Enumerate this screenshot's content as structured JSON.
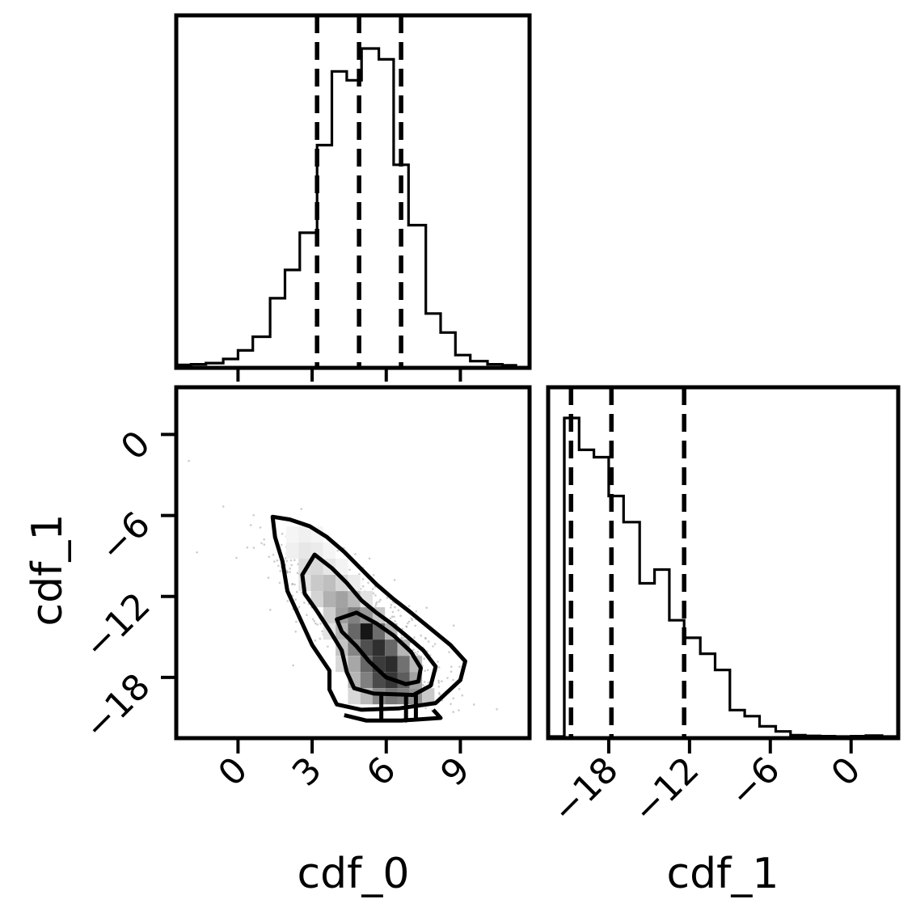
{
  "chart_data": [
    {
      "panel": "hist_cdf_0",
      "type": "bar",
      "histtype": "step",
      "xlim": [
        -2.5,
        11.8
      ],
      "bin_edges": [
        -2.5,
        -1.9,
        -1.3,
        -0.6,
        0.0,
        0.6,
        1.3,
        1.9,
        2.5,
        3.2,
        3.8,
        4.4,
        5.0,
        5.7,
        6.3,
        6.9,
        7.6,
        8.2,
        8.8,
        9.4,
        10.1,
        10.7,
        11.3
      ],
      "counts": [
        0.004,
        0.006,
        0.01,
        0.023,
        0.05,
        0.093,
        0.214,
        0.303,
        0.42,
        0.696,
        0.928,
        0.9,
        1.0,
        0.966,
        0.634,
        0.444,
        0.166,
        0.106,
        0.035,
        0.016,
        0.006,
        0.003
      ],
      "quantile_lines": [
        3.2,
        4.9,
        6.6
      ],
      "x_ticks": [
        "0",
        "3",
        "6",
        "9"
      ],
      "x_tick_values": [
        0,
        3,
        6,
        9
      ],
      "show_tick_labels": false
    },
    {
      "panel": "scatter_cdf_0_vs_cdf_1",
      "type": "scatter",
      "subtype": "2d-density-with-contours",
      "xlim": [
        -2.5,
        11.8
      ],
      "ylim": [
        -22.5,
        3.5
      ],
      "xlabel": "cdf_0",
      "ylabel": "cdf_1",
      "x_ticks": [
        "0",
        "3",
        "6",
        "9"
      ],
      "x_tick_values": [
        0,
        3,
        6,
        9
      ],
      "y_ticks": [
        "0",
        "−6",
        "−12",
        "−18"
      ],
      "y_tick_values": [
        0,
        -6,
        -12,
        -18
      ],
      "density_cells": [
        {
          "x": 2.2,
          "y": -7.4,
          "v": 0.04
        },
        {
          "x": 2.7,
          "y": -7.4,
          "v": 0.06
        },
        {
          "x": 3.2,
          "y": -7.4,
          "v": 0.04
        },
        {
          "x": 2.2,
          "y": -8.6,
          "v": 0.06
        },
        {
          "x": 2.7,
          "y": -8.6,
          "v": 0.1
        },
        {
          "x": 3.2,
          "y": -8.6,
          "v": 0.08
        },
        {
          "x": 3.7,
          "y": -8.6,
          "v": 0.04
        },
        {
          "x": 2.7,
          "y": -9.8,
          "v": 0.14
        },
        {
          "x": 3.2,
          "y": -9.8,
          "v": 0.16
        },
        {
          "x": 3.7,
          "y": -9.8,
          "v": 0.1
        },
        {
          "x": 4.2,
          "y": -9.8,
          "v": 0.05
        },
        {
          "x": 2.7,
          "y": -11.0,
          "v": 0.12
        },
        {
          "x": 3.2,
          "y": -11.0,
          "v": 0.22
        },
        {
          "x": 3.7,
          "y": -11.0,
          "v": 0.26
        },
        {
          "x": 4.2,
          "y": -11.0,
          "v": 0.16
        },
        {
          "x": 4.7,
          "y": -11.0,
          "v": 0.08
        },
        {
          "x": 3.2,
          "y": -12.2,
          "v": 0.18
        },
        {
          "x": 3.7,
          "y": -12.2,
          "v": 0.32
        },
        {
          "x": 4.2,
          "y": -12.2,
          "v": 0.38
        },
        {
          "x": 4.7,
          "y": -12.2,
          "v": 0.28
        },
        {
          "x": 5.2,
          "y": -12.2,
          "v": 0.12
        },
        {
          "x": 3.7,
          "y": -13.4,
          "v": 0.2
        },
        {
          "x": 4.2,
          "y": -13.4,
          "v": 0.4
        },
        {
          "x": 4.7,
          "y": -13.4,
          "v": 0.52
        },
        {
          "x": 5.2,
          "y": -13.4,
          "v": 0.42
        },
        {
          "x": 5.7,
          "y": -13.4,
          "v": 0.22
        },
        {
          "x": 3.7,
          "y": -14.6,
          "v": 0.12
        },
        {
          "x": 4.2,
          "y": -14.6,
          "v": 0.3
        },
        {
          "x": 4.7,
          "y": -14.6,
          "v": 0.62
        },
        {
          "x": 5.2,
          "y": -14.6,
          "v": 0.95
        },
        {
          "x": 5.7,
          "y": -14.6,
          "v": 0.6
        },
        {
          "x": 6.2,
          "y": -14.6,
          "v": 0.3
        },
        {
          "x": 4.2,
          "y": -15.8,
          "v": 0.24
        },
        {
          "x": 4.7,
          "y": -15.8,
          "v": 0.5
        },
        {
          "x": 5.2,
          "y": -15.8,
          "v": 0.72
        },
        {
          "x": 5.7,
          "y": -15.8,
          "v": 0.85
        },
        {
          "x": 6.2,
          "y": -15.8,
          "v": 0.62
        },
        {
          "x": 6.7,
          "y": -15.8,
          "v": 0.3
        },
        {
          "x": 4.2,
          "y": -17.0,
          "v": 0.16
        },
        {
          "x": 4.7,
          "y": -17.0,
          "v": 0.36
        },
        {
          "x": 5.2,
          "y": -17.0,
          "v": 0.62
        },
        {
          "x": 5.7,
          "y": -17.0,
          "v": 0.8
        },
        {
          "x": 6.2,
          "y": -17.0,
          "v": 0.86
        },
        {
          "x": 6.7,
          "y": -17.0,
          "v": 0.58
        },
        {
          "x": 7.2,
          "y": -17.0,
          "v": 0.28
        },
        {
          "x": 4.7,
          "y": -18.2,
          "v": 0.3
        },
        {
          "x": 5.2,
          "y": -18.2,
          "v": 0.52
        },
        {
          "x": 5.7,
          "y": -18.2,
          "v": 0.74
        },
        {
          "x": 6.2,
          "y": -18.2,
          "v": 0.82
        },
        {
          "x": 6.7,
          "y": -18.2,
          "v": 0.66
        },
        {
          "x": 7.2,
          "y": -18.2,
          "v": 0.38
        },
        {
          "x": 4.7,
          "y": -19.4,
          "v": 0.16
        },
        {
          "x": 5.2,
          "y": -19.4,
          "v": 0.28
        },
        {
          "x": 5.7,
          "y": -19.4,
          "v": 0.48
        },
        {
          "x": 6.2,
          "y": -19.4,
          "v": 0.56
        },
        {
          "x": 6.7,
          "y": -19.4,
          "v": 0.52
        },
        {
          "x": 7.2,
          "y": -19.4,
          "v": 0.44
        },
        {
          "x": 7.7,
          "y": -19.4,
          "v": 0.22
        }
      ],
      "contours": [
        [
          [
            1.4,
            -6.1
          ],
          [
            2.1,
            -6.3
          ],
          [
            2.9,
            -6.8
          ],
          [
            3.6,
            -7.6
          ],
          [
            4.3,
            -8.7
          ],
          [
            5.0,
            -10.0
          ],
          [
            5.6,
            -11.1
          ],
          [
            6.3,
            -12.2
          ],
          [
            7.0,
            -13.2
          ],
          [
            7.8,
            -14.4
          ],
          [
            8.6,
            -15.6
          ],
          [
            9.2,
            -16.8
          ],
          [
            9.0,
            -18.2
          ],
          [
            8.0,
            -19.9
          ],
          [
            6.5,
            -20.3
          ],
          [
            5.0,
            -20.4
          ],
          [
            4.0,
            -20.0
          ],
          [
            3.7,
            -18.9
          ],
          [
            3.7,
            -17.5
          ],
          [
            3.0,
            -15.6
          ],
          [
            2.5,
            -13.6
          ],
          [
            2.0,
            -11.6
          ],
          [
            1.8,
            -9.4
          ],
          [
            1.5,
            -7.6
          ]
        ],
        [
          [
            3.1,
            -8.9
          ],
          [
            3.8,
            -9.9
          ],
          [
            4.4,
            -11.0
          ],
          [
            5.0,
            -12.3
          ],
          [
            5.6,
            -13.2
          ],
          [
            6.2,
            -14.0
          ],
          [
            6.8,
            -14.9
          ],
          [
            7.5,
            -16.0
          ],
          [
            8.0,
            -17.2
          ],
          [
            7.8,
            -18.6
          ],
          [
            7.1,
            -19.3
          ],
          [
            5.5,
            -19.2
          ],
          [
            4.7,
            -18.8
          ],
          [
            4.4,
            -17.6
          ],
          [
            4.2,
            -16.0
          ],
          [
            3.7,
            -14.5
          ],
          [
            3.2,
            -13.1
          ],
          [
            2.7,
            -11.8
          ],
          [
            2.6,
            -10.4
          ]
        ],
        [
          [
            4.0,
            -13.7
          ],
          [
            4.8,
            -13.2
          ],
          [
            5.6,
            -14.0
          ],
          [
            6.3,
            -14.9
          ],
          [
            7.0,
            -16.1
          ],
          [
            7.4,
            -17.3
          ],
          [
            7.3,
            -18.3
          ],
          [
            6.8,
            -18.5
          ],
          [
            6.0,
            -18.0
          ],
          [
            5.3,
            -16.8
          ],
          [
            4.8,
            -15.7
          ],
          [
            4.2,
            -14.6
          ]
        ]
      ],
      "bottom_clipped_contour": [
        [
          4.3,
          -20.8
        ],
        [
          5.2,
          -21.2
        ],
        [
          6.6,
          -21.2
        ],
        [
          8.2,
          -21.0
        ],
        [
          7.9,
          -20.4
        ]
      ],
      "low_density_contour_stubs": [
        [
          5.8,
          -19.3
        ],
        [
          6.8,
          -19.4
        ],
        [
          7.2,
          -19.2
        ]
      ]
    },
    {
      "panel": "hist_cdf_1",
      "type": "bar",
      "histtype": "step",
      "xlim": [
        -22.5,
        3.5
      ],
      "xlabel": "cdf_1",
      "bin_edges": [
        -22.5,
        -21.3,
        -20.2,
        -19.1,
        -18.0,
        -16.9,
        -15.7,
        -14.6,
        -13.5,
        -12.4,
        -11.2,
        -10.1,
        -9.0,
        -7.9,
        -6.8,
        -5.6,
        -4.5,
        -3.4,
        -2.3,
        -1.2,
        0.0,
        1.1,
        2.3,
        3.4
      ],
      "counts": [
        0.0,
        1.0,
        0.9,
        0.877,
        0.755,
        0.673,
        0.481,
        0.524,
        0.365,
        0.31,
        0.26,
        0.209,
        0.083,
        0.064,
        0.032,
        0.016,
        0.004,
        0.002,
        0.001,
        0.0,
        0.001,
        0.003,
        0.0
      ],
      "quantile_lines": [
        -20.8,
        -17.8,
        -12.4
      ],
      "x_ticks": [
        "−18",
        "−12",
        "−6",
        "0"
      ],
      "x_tick_values": [
        -18,
        -12,
        -6,
        0
      ]
    }
  ]
}
